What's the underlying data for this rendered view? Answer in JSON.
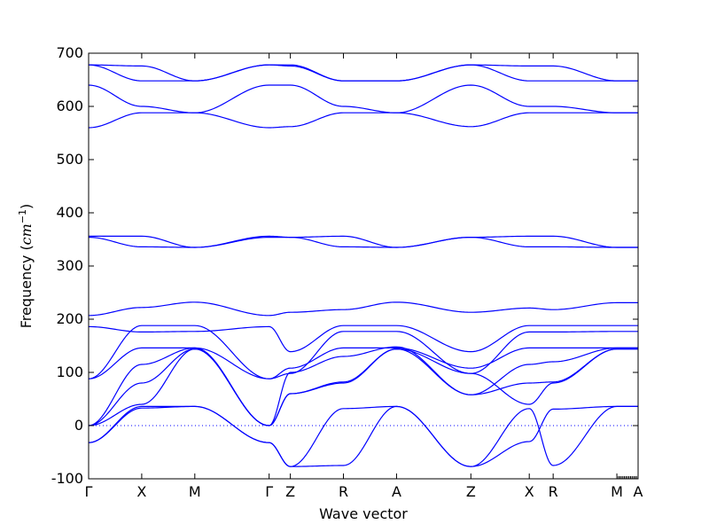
{
  "chart_data": {
    "type": "line",
    "title": "",
    "xlabel": "Wave vector",
    "ylabel": "Frequency (cm⁻¹)",
    "ylabel_parts": {
      "text": "Frequency (",
      "unit": "cm",
      "exp": "−1",
      "close": ")"
    },
    "ylim": [
      -100,
      700
    ],
    "yticks": [
      -100,
      0,
      100,
      200,
      300,
      400,
      500,
      600,
      700
    ],
    "grid": false,
    "legend": "none",
    "line_color": "#0000ff",
    "xticks": [
      {
        "label": "Γ",
        "x": 0.0
      },
      {
        "label": "X",
        "x": 1.0
      },
      {
        "label": "M",
        "x": 2.0
      },
      {
        "label": "Γ",
        "x": 3.4
      },
      {
        "label": "Z",
        "x": 3.8
      },
      {
        "label": "R",
        "x": 4.8
      },
      {
        "label": "A",
        "x": 5.8
      },
      {
        "label": "Z",
        "x": 7.2
      },
      {
        "label": "X",
        "x": 8.3
      },
      {
        "label": "R",
        "x": 8.75
      },
      {
        "label": "M",
        "x": 9.95
      },
      {
        "label": "A",
        "x": 10.35
      }
    ],
    "xlim": [
      0,
      10.35
    ],
    "series": [
      {
        "x": [
          0,
          1.0,
          2.0,
          3.4,
          3.8,
          4.8,
          5.8,
          7.2,
          8.3,
          8.75,
          9.95,
          10.35
        ],
        "y": [
          678,
          676,
          648,
          678,
          678,
          648,
          648,
          678,
          676,
          676,
          648,
          648
        ]
      },
      {
        "x": [
          0,
          1.0,
          2.0,
          3.4,
          3.8,
          4.8,
          5.8,
          7.2,
          8.3,
          8.75,
          9.95,
          10.35
        ],
        "y": [
          678,
          648,
          648,
          678,
          676,
          648,
          648,
          678,
          648,
          648,
          648,
          648
        ]
      },
      {
        "x": [
          0,
          1.0,
          2.0,
          3.4,
          3.8,
          4.8,
          5.8,
          7.2,
          8.3,
          8.75,
          9.95,
          10.35
        ],
        "y": [
          640,
          600,
          588,
          640,
          640,
          600,
          588,
          640,
          600,
          600,
          588,
          588
        ]
      },
      {
        "x": [
          0,
          1.0,
          2.0,
          3.4,
          3.8,
          4.8,
          5.8,
          7.2,
          8.3,
          8.75,
          9.95,
          10.35
        ],
        "y": [
          560,
          588,
          588,
          560,
          562,
          588,
          588,
          562,
          588,
          588,
          588,
          588
        ]
      },
      {
        "x": [
          0,
          1.0,
          2.0,
          3.4,
          3.8,
          4.8,
          5.8,
          7.2,
          8.3,
          8.75,
          9.95,
          10.35
        ],
        "y": [
          356,
          356,
          335,
          356,
          354,
          356,
          335,
          354,
          356,
          356,
          335,
          335
        ]
      },
      {
        "x": [
          0,
          1.0,
          2.0,
          3.4,
          3.8,
          4.8,
          5.8,
          7.2,
          8.3,
          8.75,
          9.95,
          10.35
        ],
        "y": [
          354,
          336,
          335,
          354,
          354,
          336,
          335,
          354,
          336,
          336,
          335,
          335
        ]
      },
      {
        "x": [
          0,
          1.0,
          2.0,
          3.4,
          3.8,
          4.8,
          5.8,
          7.2,
          8.3,
          8.75,
          9.95,
          10.35
        ],
        "y": [
          207,
          222,
          232,
          207,
          213,
          218,
          232,
          213,
          221,
          218,
          231,
          231
        ]
      },
      {
        "x": [
          0,
          1.0,
          2.0,
          3.4,
          3.8,
          4.8,
          5.8,
          7.2,
          8.3,
          8.75,
          9.95,
          10.35
        ],
        "y": [
          186,
          176,
          177,
          186,
          139,
          188,
          188,
          139,
          188,
          188,
          188,
          188
        ]
      },
      {
        "x": [
          0,
          1.0,
          2.0,
          3.4,
          3.8,
          4.8,
          5.8,
          7.2,
          8.3,
          8.75,
          9.95,
          10.35
        ],
        "y": [
          88,
          188,
          188,
          88,
          98,
          177,
          177,
          98,
          176,
          176,
          177,
          177
        ]
      },
      {
        "x": [
          0,
          1.0,
          2.0,
          3.4,
          3.8,
          4.8,
          5.8,
          7.2,
          8.3,
          8.75,
          9.95,
          10.35
        ],
        "y": [
          88,
          146,
          146,
          88,
          108,
          146,
          146,
          108,
          146,
          146,
          146,
          146
        ]
      },
      {
        "x": [
          0,
          1.0,
          2.0,
          3.4,
          3.8,
          4.8,
          5.8,
          7.2,
          8.3,
          8.75,
          9.95,
          10.35
        ],
        "y": [
          0,
          115,
          146,
          0,
          100,
          130,
          148,
          58,
          115,
          120,
          146,
          146
        ]
      },
      {
        "x": [
          0,
          1.0,
          2.0,
          3.4,
          3.8,
          4.8,
          5.8,
          7.2,
          8.3,
          8.75,
          9.95,
          10.35
        ],
        "y": [
          0,
          80,
          144,
          0,
          60,
          82,
          144,
          58,
          80,
          82,
          144,
          144
        ]
      },
      {
        "x": [
          0,
          1.0,
          2.0,
          3.4,
          3.8,
          4.8,
          5.8,
          7.2,
          8.3,
          8.75,
          9.95,
          10.35
        ],
        "y": [
          0,
          40,
          144,
          0,
          60,
          80,
          144,
          98,
          40,
          80,
          144,
          144
        ]
      },
      {
        "x": [
          0,
          1.0,
          2.0,
          3.4,
          3.8,
          4.8,
          5.8,
          7.2,
          8.3,
          8.75,
          9.95,
          10.35
        ],
        "y": [
          -32,
          36,
          36,
          -32,
          -77,
          -75,
          36,
          -77,
          -30,
          31,
          36,
          36
        ]
      },
      {
        "x": [
          0,
          1.0,
          2.0,
          3.4,
          3.8,
          4.8,
          5.8,
          7.2,
          8.3,
          8.75,
          9.95,
          10.35
        ],
        "y": [
          -32,
          33,
          36,
          -32,
          -77,
          32,
          36,
          -77,
          32,
          -75,
          36,
          36
        ]
      }
    ]
  }
}
